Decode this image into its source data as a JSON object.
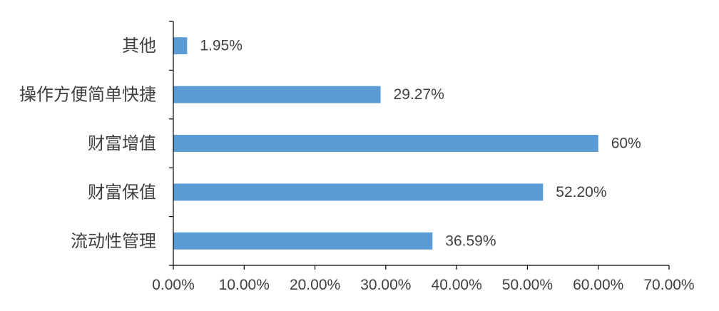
{
  "chart_data": {
    "type": "bar",
    "orientation": "horizontal",
    "categories": [
      "其他",
      "操作方便简单快捷",
      "财富增值",
      "财富保值",
      "流动性管理"
    ],
    "values": [
      1.95,
      29.27,
      60,
      52.2,
      36.59
    ],
    "data_labels": [
      "1.95%",
      "29.27%",
      "60%",
      "52.20%",
      "36.59%"
    ],
    "x_ticks": [
      "0.00%",
      "10.00%",
      "20.00%",
      "30.00%",
      "40.00%",
      "50.00%",
      "60.00%",
      "70.00%"
    ],
    "xlim": [
      0,
      70
    ],
    "grid": false,
    "bar_color": "#5b9bd5"
  }
}
